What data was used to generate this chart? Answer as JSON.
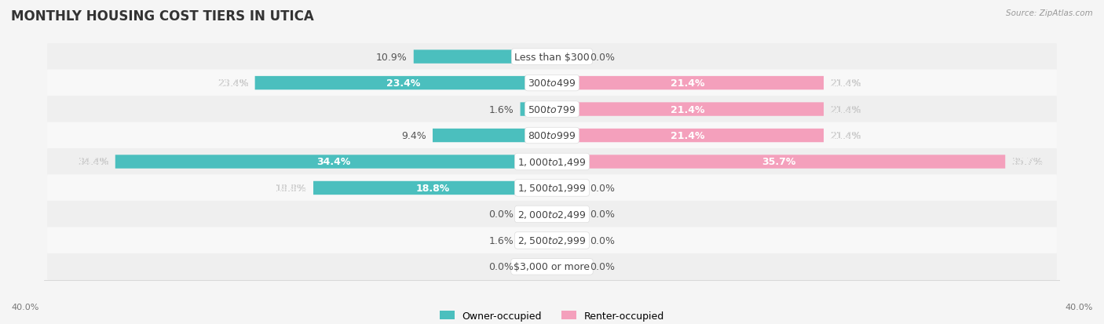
{
  "title": "MONTHLY HOUSING COST TIERS IN UTICA",
  "source": "Source: ZipAtlas.com",
  "categories": [
    "Less than $300",
    "$300 to $499",
    "$500 to $799",
    "$800 to $999",
    "$1,000 to $1,499",
    "$1,500 to $1,999",
    "$2,000 to $2,499",
    "$2,500 to $2,999",
    "$3,000 or more"
  ],
  "owner_values": [
    10.9,
    23.4,
    1.6,
    9.4,
    34.4,
    18.8,
    0.0,
    1.6,
    0.0
  ],
  "renter_values": [
    0.0,
    21.4,
    21.4,
    21.4,
    35.7,
    0.0,
    0.0,
    0.0,
    0.0
  ],
  "owner_color": "#4BBFBE",
  "renter_color": "#F4A0BC",
  "owner_stub_color": "#A8DCDB",
  "renter_stub_color": "#F9C8D8",
  "background_color": "#f5f5f5",
  "row_bg_even": "#efefef",
  "row_bg_odd": "#f8f8f8",
  "max_value": 40.0,
  "stub_value": 2.5,
  "title_fontsize": 12,
  "label_fontsize": 9,
  "category_fontsize": 9,
  "legend_fontsize": 9,
  "axis_tick_fontsize": 8
}
